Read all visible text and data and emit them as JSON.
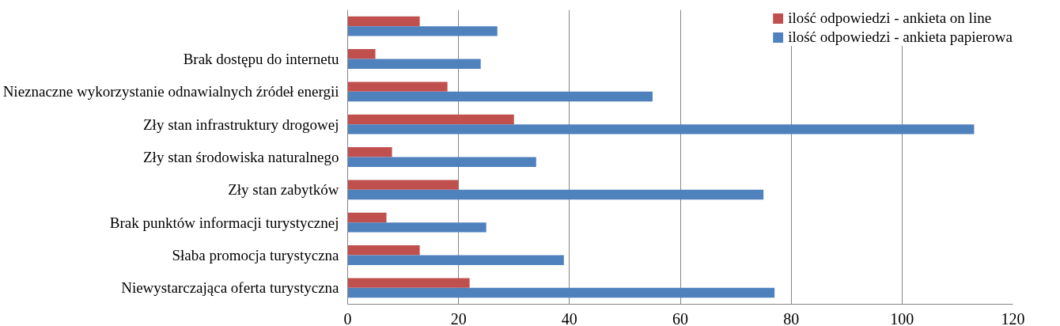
{
  "chart_data": {
    "type": "bar",
    "orientation": "horizontal",
    "categories": [
      null,
      "Brak dostępu do internetu",
      "Nieznaczne wykorzystanie odnawialnych źródeł energii",
      "Zły stan infrastruktury drogowej",
      "Zły stan środowiska naturalnego",
      "Zły stan zabytków",
      "Brak punktów informacji turystycznej",
      "Słaba promocja turystyczna",
      "Niewystarczająca oferta turystyczna"
    ],
    "series": [
      {
        "name": "ilość odpowiedzi - ankieta on line",
        "color": "#c0504d",
        "values": [
          13,
          5,
          18,
          30,
          8,
          20,
          7,
          13,
          22
        ]
      },
      {
        "name": "ilość odpowiedzi - ankieta papierowa",
        "color": "#4f81bd",
        "values": [
          27,
          24,
          55,
          113,
          34,
          75,
          25,
          39,
          77
        ]
      }
    ],
    "xlim": [
      0,
      120
    ],
    "xticks": [
      0,
      20,
      40,
      60,
      80,
      100,
      120
    ],
    "grid": "x",
    "legend": "top right"
  }
}
